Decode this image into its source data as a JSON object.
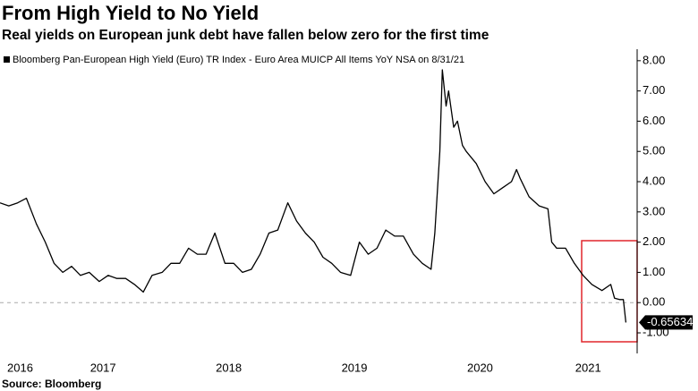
{
  "chart_data": {
    "type": "line",
    "title": "From High Yield to No Yield",
    "subtitle": "Real yields on European junk debt have fallen below zero for the first time",
    "source": "Source: Bloomberg",
    "series": [
      {
        "name": "Bloomberg Pan-European High Yield (Euro) TR Index - Euro Area MUICP All Items YoY NSA on 8/31/21",
        "color": "#000000",
        "x": [
          2016.68,
          2016.75,
          2016.82,
          2016.89,
          2016.97,
          2017.04,
          2017.11,
          2017.18,
          2017.25,
          2017.32,
          2017.39,
          2017.47,
          2017.54,
          2017.61,
          2017.68,
          2017.75,
          2017.82,
          2017.89,
          2017.97,
          2018.04,
          2018.11,
          2018.18,
          2018.25,
          2018.32,
          2018.39,
          2018.47,
          2018.54,
          2018.61,
          2018.68,
          2018.75,
          2018.82,
          2018.89,
          2018.97,
          2019.04,
          2019.11,
          2019.18,
          2019.25,
          2019.32,
          2019.39,
          2019.47,
          2019.54,
          2019.61,
          2019.68,
          2019.75,
          2019.82,
          2019.89,
          2019.97,
          2020.04,
          2020.11,
          2020.14,
          2020.18,
          2020.2,
          2020.23,
          2020.25,
          2020.29,
          2020.32,
          2020.36,
          2020.39,
          2020.47,
          2020.54,
          2020.61,
          2020.68,
          2020.75,
          2020.79,
          2020.82,
          2020.89,
          2020.97,
          2021.04,
          2021.07,
          2021.11,
          2021.18,
          2021.25,
          2021.32,
          2021.39,
          2021.47,
          2021.54,
          2021.57,
          2021.61,
          2021.64,
          2021.66
        ],
        "values": [
          3.3,
          3.2,
          3.3,
          3.45,
          2.6,
          2.0,
          1.3,
          1.0,
          1.2,
          0.9,
          1.0,
          0.7,
          0.9,
          0.8,
          0.8,
          0.6,
          0.35,
          0.9,
          1.0,
          1.3,
          1.3,
          1.8,
          1.6,
          1.6,
          2.3,
          1.3,
          1.3,
          1.0,
          1.1,
          1.6,
          2.3,
          2.4,
          3.3,
          2.7,
          2.3,
          2.0,
          1.5,
          1.3,
          1.0,
          0.9,
          2.0,
          1.6,
          1.8,
          2.4,
          2.2,
          2.2,
          1.6,
          1.3,
          1.1,
          2.3,
          5.0,
          7.7,
          6.5,
          7.0,
          5.8,
          6.0,
          5.2,
          5.0,
          4.6,
          4.0,
          3.6,
          3.8,
          4.0,
          4.4,
          4.1,
          3.5,
          3.2,
          3.1,
          2.0,
          1.8,
          1.8,
          1.3,
          0.9,
          0.6,
          0.4,
          0.6,
          0.15,
          0.1,
          0.1,
          -0.65634
        ]
      }
    ],
    "xlim": [
      2016.68,
      2021.75
    ],
    "xticks": [
      {
        "value": 2016.84,
        "label": "2016"
      },
      {
        "value": 2017.5,
        "label": "2017"
      },
      {
        "value": 2018.5,
        "label": "2018"
      },
      {
        "value": 2019.5,
        "label": "2019"
      },
      {
        "value": 2020.5,
        "label": "2020"
      },
      {
        "value": 2021.36,
        "label": "2021"
      }
    ],
    "ylim": [
      -1.68,
      8.38
    ],
    "yticks": [
      {
        "value": 8,
        "label": "8.00"
      },
      {
        "value": 7,
        "label": "7.00"
      },
      {
        "value": 6,
        "label": "6.00"
      },
      {
        "value": 5,
        "label": "5.00"
      },
      {
        "value": 4,
        "label": "4.00"
      },
      {
        "value": 3,
        "label": "3.00"
      },
      {
        "value": 2,
        "label": "2.00"
      },
      {
        "value": 1,
        "label": "1.00"
      },
      {
        "value": 0,
        "label": "0.00"
      },
      {
        "value": -1,
        "label": "-1.00"
      }
    ],
    "y_axis_side": "right",
    "zero_line": true
  }
}
